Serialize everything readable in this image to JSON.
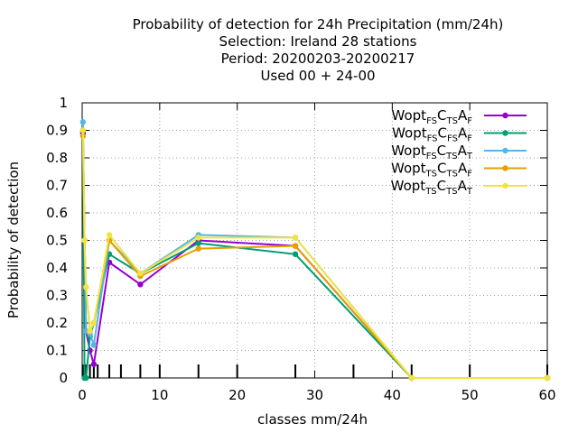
{
  "chart_data": {
    "type": "line",
    "title_lines": [
      "Probability of detection  for 24h Precipitation (mm/24h)",
      "Selection: Ireland     28 stations",
      "Period: 20200203-20200217",
      "Used  00 + 24-00"
    ],
    "xlabel": "classes mm/24h",
    "ylabel": "Probability of detection",
    "xlim": [
      0,
      60
    ],
    "ylim": [
      0,
      1
    ],
    "xticks": [
      "0",
      "10",
      "20",
      "30",
      "40",
      "50",
      "60"
    ],
    "yticks": [
      "0",
      "0.1",
      "0.2",
      "0.3",
      "0.4",
      "0.5",
      "0.6",
      "0.7",
      "0.8",
      "0.9",
      "1"
    ],
    "grid": true,
    "legend_position": "top-right",
    "class_marks": [
      0.1,
      0.3,
      0.5,
      1,
      1.5,
      2,
      3.5,
      5,
      7.5,
      10,
      15,
      20,
      27.5,
      35,
      42.5,
      50,
      60
    ],
    "series": [
      {
        "name": "Wopt FS C TS A F",
        "legend": {
          "parts": [
            [
              "Wopt",
              ""
            ],
            [
              "FS",
              "sub"
            ],
            [
              "C",
              ""
            ],
            [
              "TS",
              "sub"
            ],
            [
              "A",
              ""
            ],
            [
              "F",
              "sub"
            ]
          ]
        },
        "color": "#9400d3",
        "x": [
          0.1,
          0.3,
          0.5,
          1,
          1.5,
          3.5,
          7.5,
          15,
          27.5,
          42.5,
          60
        ],
        "y": [
          0.89,
          0.5,
          0.17,
          0.1,
          0.05,
          0.42,
          0.34,
          0.5,
          0.48,
          0.0,
          0.0
        ]
      },
      {
        "name": "Wopt FS C FS A F",
        "legend": {
          "parts": [
            [
              "Wopt",
              ""
            ],
            [
              "FS",
              "sub"
            ],
            [
              "C",
              ""
            ],
            [
              "FS",
              "sub"
            ],
            [
              "A",
              ""
            ],
            [
              "F",
              "sub"
            ]
          ]
        },
        "color": "#009e73",
        "x": [
          0.1,
          0.3,
          0.5,
          1,
          1.5,
          3.5,
          7.5,
          15,
          27.5,
          42.5,
          60
        ],
        "y": [
          0.9,
          0.0,
          0.0,
          0.15,
          0.2,
          0.45,
          0.38,
          0.49,
          0.45,
          0.0,
          0.0
        ]
      },
      {
        "name": "Wopt FS C TS A T",
        "legend": {
          "parts": [
            [
              "Wopt",
              ""
            ],
            [
              "FS",
              "sub"
            ],
            [
              "C",
              ""
            ],
            [
              "TS",
              "sub"
            ],
            [
              "A",
              ""
            ],
            [
              "T",
              "sub"
            ]
          ]
        },
        "color": "#56b4e9",
        "x": [
          0.1,
          0.3,
          0.5,
          1,
          1.5,
          3.5,
          7.5,
          15,
          27.5,
          42.5,
          60
        ],
        "y": [
          0.93,
          0.5,
          0.17,
          0.16,
          0.12,
          0.5,
          0.38,
          0.52,
          0.51,
          0.0,
          0.0
        ]
      },
      {
        "name": "Wopt TS C TS A F",
        "legend": {
          "parts": [
            [
              "Wopt",
              ""
            ],
            [
              "TS",
              "sub"
            ],
            [
              "C",
              ""
            ],
            [
              "TS",
              "sub"
            ],
            [
              "A",
              ""
            ],
            [
              "F",
              "sub"
            ]
          ]
        },
        "color": "#e69f00",
        "x": [
          0.1,
          0.3,
          0.5,
          1,
          1.5,
          3.5,
          7.5,
          15,
          27.5,
          42.5,
          60
        ],
        "y": [
          0.88,
          0.5,
          0.33,
          0.17,
          0.2,
          0.5,
          0.37,
          0.47,
          0.48,
          0.0,
          0.0
        ]
      },
      {
        "name": "Wopt TS C TS A T",
        "legend": {
          "parts": [
            [
              "Wopt",
              ""
            ],
            [
              "TS",
              "sub"
            ],
            [
              "C",
              ""
            ],
            [
              "TS",
              "sub"
            ],
            [
              "A",
              ""
            ],
            [
              "T",
              "sub"
            ]
          ]
        },
        "color": "#f0e442",
        "x": [
          0.1,
          0.3,
          0.5,
          1,
          1.5,
          3.5,
          7.5,
          15,
          27.5,
          42.5,
          60
        ],
        "y": [
          0.9,
          0.5,
          0.33,
          0.17,
          0.2,
          0.52,
          0.38,
          0.51,
          0.51,
          0.0,
          0.0
        ]
      }
    ]
  }
}
